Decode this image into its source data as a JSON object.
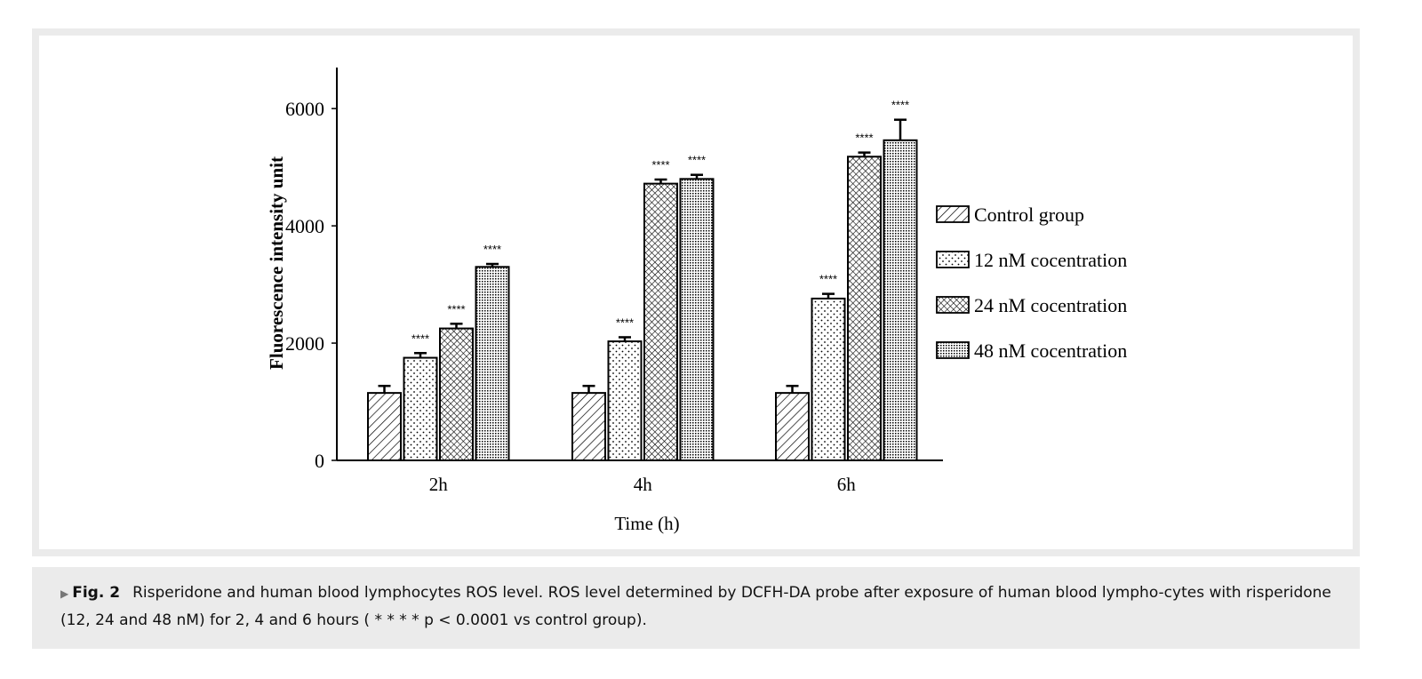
{
  "chart_data": {
    "type": "bar",
    "xlabel": "Time  (h)",
    "ylabel": "Fluorescence intensity unit",
    "categories": [
      "2h",
      "4h",
      "6h"
    ],
    "ylim": [
      0,
      6700
    ],
    "yticks": [
      0,
      2000,
      4000,
      6000
    ],
    "yticks_labels": [
      "0",
      "2000",
      "4000",
      "6000"
    ],
    "grid": false,
    "legend_position": "right",
    "series": [
      {
        "name": "Control group",
        "pattern": "diagonal-hatch",
        "values": [
          1150,
          1150,
          1150
        ],
        "errors": [
          120,
          120,
          120
        ],
        "annotations": [
          "",
          "",
          ""
        ]
      },
      {
        "name": "12 nM cocentration",
        "pattern": "sparse-dots",
        "values": [
          1750,
          2030,
          2760
        ],
        "errors": [
          80,
          70,
          80
        ],
        "annotations": [
          "****",
          "****",
          "****"
        ]
      },
      {
        "name": "24 nM cocentration",
        "pattern": "crosshatch",
        "values": [
          2250,
          4720,
          5180
        ],
        "errors": [
          80,
          70,
          70
        ],
        "annotations": [
          "****",
          "****",
          "****"
        ]
      },
      {
        "name": "48 nM cocentration",
        "pattern": "dense-dots",
        "values": [
          3300,
          4800,
          5460
        ],
        "errors": [
          50,
          70,
          350
        ],
        "annotations": [
          "****",
          "****",
          "****"
        ]
      }
    ]
  },
  "caption": {
    "marker": "▶",
    "label": "Fig. 2",
    "text": "Risperidone and human blood lymphocytes ROS level. ROS level determined by DCFH-DA probe after exposure of human blood lympho-cytes with risperidone (12, 24 and 48 nM) for 2, 4 and 6 hours ( * * * * p < 0.0001 vs control group)."
  }
}
